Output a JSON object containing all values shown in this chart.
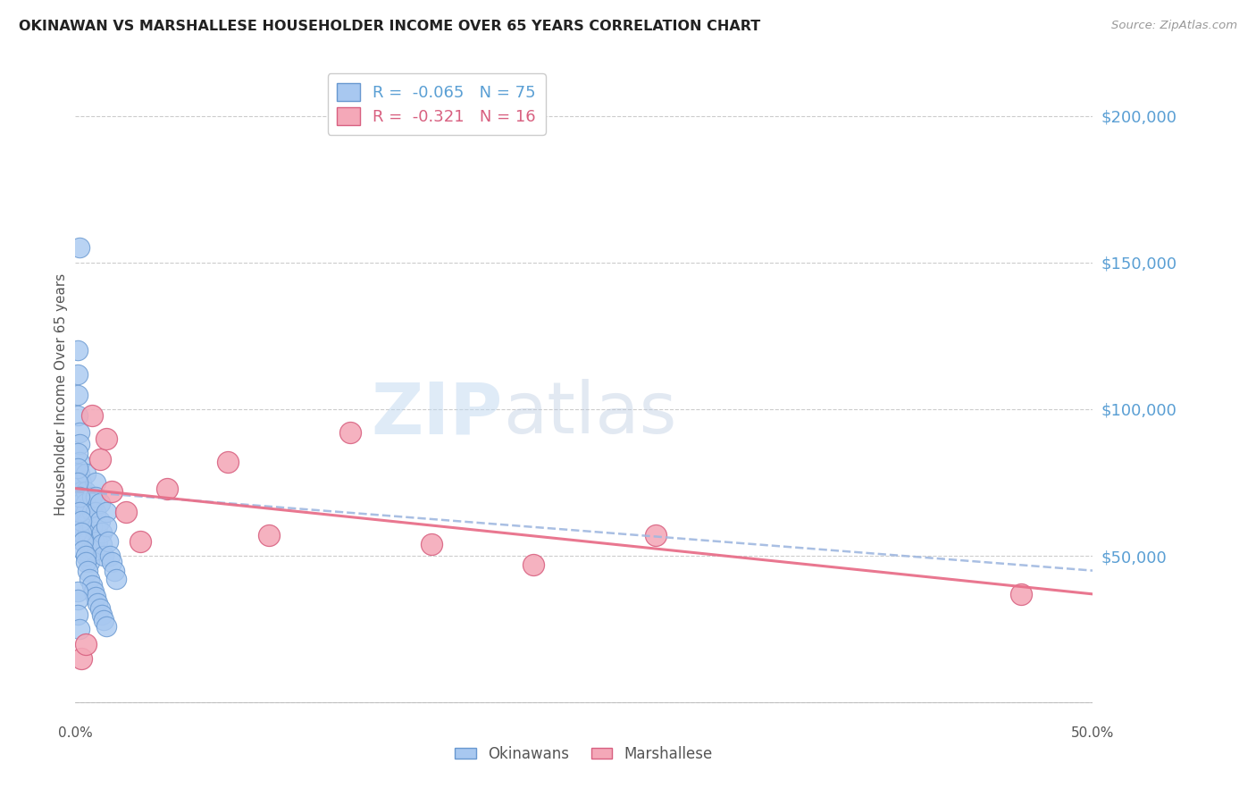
{
  "title": "OKINAWAN VS MARSHALLESE HOUSEHOLDER INCOME OVER 65 YEARS CORRELATION CHART",
  "source": "Source: ZipAtlas.com",
  "ylabel": "Householder Income Over 65 years",
  "xlim": [
    0.0,
    0.5
  ],
  "ylim": [
    -5000,
    215000
  ],
  "ytick_vals": [
    0,
    50000,
    100000,
    150000,
    200000
  ],
  "right_ytick_labels": [
    "$50,000",
    "$100,000",
    "$150,000",
    "$200,000"
  ],
  "right_ytick_vals": [
    50000,
    100000,
    150000,
    200000
  ],
  "okinawan_R": -0.065,
  "okinawan_N": 75,
  "marshallese_R": -0.321,
  "marshallese_N": 16,
  "okinawan_color": "#a8c8f0",
  "marshallese_color": "#f4a8b8",
  "okinawan_edge": "#6898d0",
  "marshallese_edge": "#d86080",
  "trend_blue_color": "#a0b8e0",
  "trend_pink_color": "#e8708a",
  "watermark_zip": "ZIP",
  "watermark_atlas": "atlas",
  "background_color": "#ffffff",
  "grid_color": "#cccccc",
  "title_color": "#222222",
  "okinawan_x": [
    0.002,
    0.001,
    0.001,
    0.001,
    0.001,
    0.002,
    0.002,
    0.002,
    0.002,
    0.003,
    0.003,
    0.003,
    0.003,
    0.003,
    0.004,
    0.004,
    0.004,
    0.004,
    0.005,
    0.005,
    0.005,
    0.005,
    0.006,
    0.006,
    0.006,
    0.007,
    0.007,
    0.007,
    0.008,
    0.008,
    0.008,
    0.009,
    0.009,
    0.01,
    0.01,
    0.01,
    0.011,
    0.011,
    0.012,
    0.012,
    0.013,
    0.013,
    0.014,
    0.015,
    0.015,
    0.016,
    0.017,
    0.018,
    0.019,
    0.02,
    0.001,
    0.001,
    0.001,
    0.002,
    0.002,
    0.003,
    0.003,
    0.004,
    0.004,
    0.005,
    0.005,
    0.006,
    0.007,
    0.008,
    0.009,
    0.01,
    0.011,
    0.012,
    0.013,
    0.014,
    0.015,
    0.001,
    0.001,
    0.001,
    0.002
  ],
  "okinawan_y": [
    155000,
    120000,
    112000,
    105000,
    98000,
    92000,
    88000,
    82000,
    78000,
    75000,
    72000,
    70000,
    68000,
    65000,
    63000,
    60000,
    58000,
    55000,
    78000,
    72000,
    68000,
    65000,
    62000,
    58000,
    55000,
    52000,
    50000,
    48000,
    70000,
    65000,
    60000,
    55000,
    52000,
    75000,
    70000,
    65000,
    60000,
    55000,
    68000,
    62000,
    58000,
    54000,
    50000,
    65000,
    60000,
    55000,
    50000,
    48000,
    45000,
    42000,
    85000,
    80000,
    75000,
    70000,
    65000,
    62000,
    58000,
    55000,
    52000,
    50000,
    48000,
    45000,
    42000,
    40000,
    38000,
    36000,
    34000,
    32000,
    30000,
    28000,
    26000,
    38000,
    35000,
    30000,
    25000
  ],
  "marshallese_x": [
    0.003,
    0.005,
    0.008,
    0.012,
    0.015,
    0.018,
    0.025,
    0.032,
    0.045,
    0.075,
    0.095,
    0.135,
    0.175,
    0.225,
    0.285,
    0.465
  ],
  "marshallese_y": [
    15000,
    20000,
    98000,
    83000,
    90000,
    72000,
    65000,
    55000,
    73000,
    82000,
    57000,
    92000,
    54000,
    47000,
    57000,
    37000
  ],
  "ok_trend_x0": 0.0,
  "ok_trend_y0": 72000,
  "ok_trend_x1": 0.5,
  "ok_trend_y1": 45000,
  "marsh_trend_x0": 0.0,
  "marsh_trend_y0": 73000,
  "marsh_trend_x1": 0.5,
  "marsh_trend_y1": 37000
}
